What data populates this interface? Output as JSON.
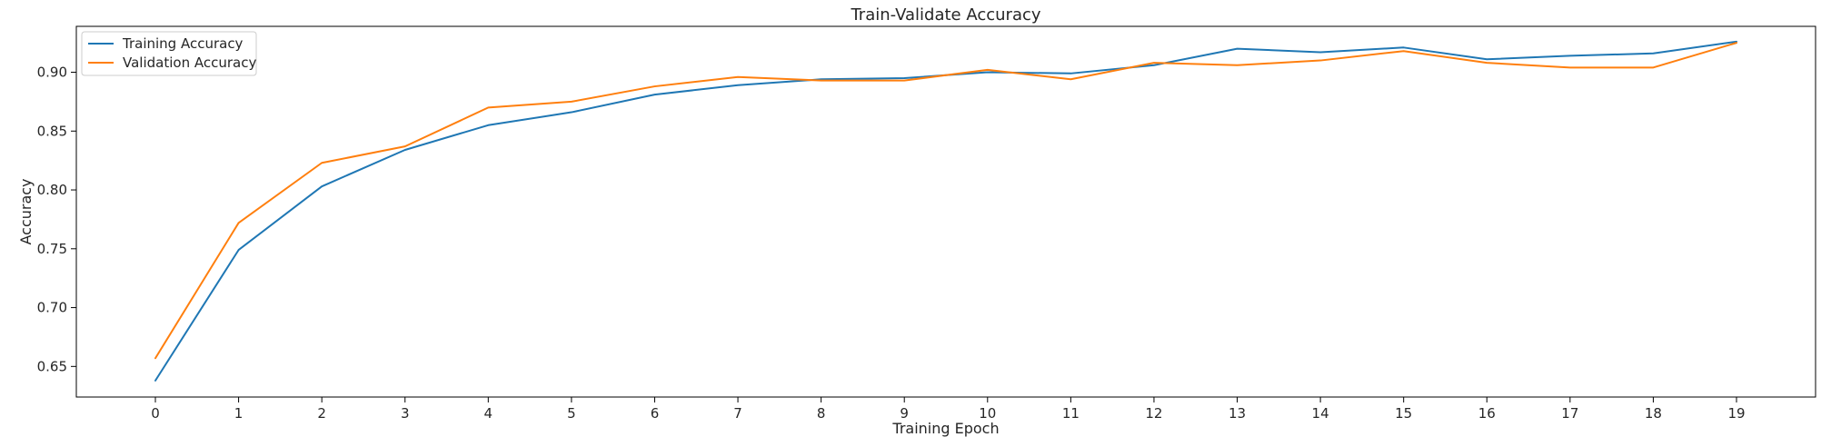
{
  "chart_data": {
    "type": "line",
    "title": "Train-Validate Accuracy",
    "xlabel": "Training Epoch",
    "ylabel": "Accuracy",
    "x": [
      0,
      1,
      2,
      3,
      4,
      5,
      6,
      7,
      8,
      9,
      10,
      11,
      12,
      13,
      14,
      15,
      16,
      17,
      18,
      19
    ],
    "xticks": [
      0,
      1,
      2,
      3,
      4,
      5,
      6,
      7,
      8,
      9,
      10,
      11,
      12,
      13,
      14,
      15,
      16,
      17,
      18,
      19
    ],
    "yticks": [
      0.65,
      0.7,
      0.75,
      0.8,
      0.85,
      0.9
    ],
    "ytick_labels": [
      "0.65",
      "0.70",
      "0.75",
      "0.80",
      "0.85",
      "0.90"
    ],
    "xlim": [
      -0.95,
      19.95
    ],
    "ylim": [
      0.624,
      0.939
    ],
    "grid": false,
    "legend_position": "top-left",
    "series": [
      {
        "name": "Training Accuracy",
        "color": "#1f77b4",
        "values": [
          0.638,
          0.749,
          0.803,
          0.834,
          0.855,
          0.866,
          0.881,
          0.889,
          0.894,
          0.895,
          0.9,
          0.899,
          0.906,
          0.92,
          0.917,
          0.921,
          0.911,
          0.914,
          0.916,
          0.926
        ]
      },
      {
        "name": "Validation Accuracy",
        "color": "#ff7f0e",
        "values": [
          0.657,
          0.772,
          0.823,
          0.837,
          0.87,
          0.875,
          0.888,
          0.896,
          0.893,
          0.893,
          0.902,
          0.894,
          0.908,
          0.906,
          0.91,
          0.918,
          0.908,
          0.904,
          0.904,
          0.925
        ]
      }
    ]
  }
}
